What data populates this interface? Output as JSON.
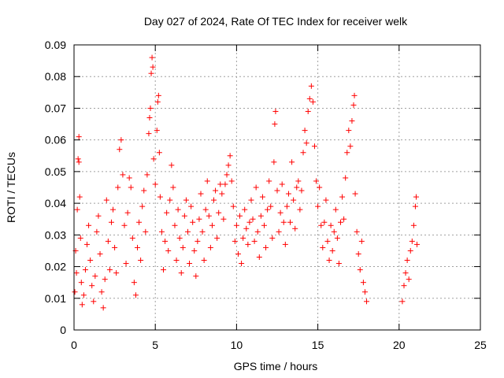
{
  "chart_data": {
    "type": "scatter",
    "title": "Day 027 of 2024, Rate Of TEC Index for receiver welk",
    "xlabel": "GPS time / hours",
    "ylabel": "ROTI / TECUs",
    "xlim": [
      0,
      25
    ],
    "ylim": [
      0,
      0.09
    ],
    "xticks": [
      0,
      5,
      10,
      15,
      20,
      25
    ],
    "yticks": [
      0,
      0.01,
      0.02,
      0.03,
      0.04,
      0.05,
      0.06,
      0.07,
      0.08,
      0.09
    ],
    "xtick_labels": [
      "0",
      "5",
      "10",
      "15",
      "20",
      "25"
    ],
    "ytick_labels": [
      "0",
      "0.01",
      "0.02",
      "0.03",
      "0.04",
      "0.05",
      "0.06",
      "0.07",
      "0.08",
      "0.09"
    ],
    "grid": true,
    "marker": "+",
    "color": "#ff0000",
    "series": [
      {
        "points": [
          [
            0.05,
            0.012
          ],
          [
            0.1,
            0.025
          ],
          [
            0.15,
            0.018
          ],
          [
            0.2,
            0.038
          ],
          [
            0.25,
            0.054
          ],
          [
            0.3,
            0.061
          ],
          [
            0.3,
            0.053
          ],
          [
            0.35,
            0.042
          ],
          [
            0.4,
            0.029
          ],
          [
            0.45,
            0.015
          ],
          [
            0.5,
            0.008
          ],
          [
            0.6,
            0.011
          ],
          [
            0.7,
            0.019
          ],
          [
            0.8,
            0.027
          ],
          [
            0.9,
            0.033
          ],
          [
            1.0,
            0.022
          ],
          [
            1.1,
            0.014
          ],
          [
            1.2,
            0.009
          ],
          [
            1.3,
            0.017
          ],
          [
            1.4,
            0.031
          ],
          [
            1.5,
            0.036
          ],
          [
            1.6,
            0.024
          ],
          [
            1.7,
            0.012
          ],
          [
            1.8,
            0.007
          ],
          [
            1.9,
            0.016
          ],
          [
            2.0,
            0.041
          ],
          [
            2.1,
            0.028
          ],
          [
            2.2,
            0.019
          ],
          [
            2.3,
            0.034
          ],
          [
            2.4,
            0.038
          ],
          [
            2.5,
            0.026
          ],
          [
            2.6,
            0.018
          ],
          [
            2.7,
            0.045
          ],
          [
            2.8,
            0.057
          ],
          [
            2.9,
            0.06
          ],
          [
            3.0,
            0.049
          ],
          [
            3.1,
            0.033
          ],
          [
            3.2,
            0.021
          ],
          [
            3.3,
            0.037
          ],
          [
            3.4,
            0.048
          ],
          [
            3.5,
            0.045
          ],
          [
            3.6,
            0.029
          ],
          [
            3.7,
            0.015
          ],
          [
            3.8,
            0.011
          ],
          [
            3.9,
            0.026
          ],
          [
            4.0,
            0.034
          ],
          [
            4.1,
            0.022
          ],
          [
            4.2,
            0.039
          ],
          [
            4.3,
            0.044
          ],
          [
            4.4,
            0.031
          ],
          [
            4.5,
            0.049
          ],
          [
            4.6,
            0.062
          ],
          [
            4.65,
            0.067
          ],
          [
            4.7,
            0.07
          ],
          [
            4.75,
            0.081
          ],
          [
            4.8,
            0.086
          ],
          [
            4.85,
            0.083
          ],
          [
            4.9,
            0.054
          ],
          [
            5.0,
            0.046
          ],
          [
            5.1,
            0.063
          ],
          [
            5.15,
            0.072
          ],
          [
            5.2,
            0.074
          ],
          [
            5.25,
            0.056
          ],
          [
            5.3,
            0.042
          ],
          [
            5.4,
            0.031
          ],
          [
            5.5,
            0.019
          ],
          [
            5.6,
            0.028
          ],
          [
            5.7,
            0.037
          ],
          [
            5.8,
            0.025
          ],
          [
            5.9,
            0.041
          ],
          [
            6.0,
            0.052
          ],
          [
            6.1,
            0.045
          ],
          [
            6.2,
            0.033
          ],
          [
            6.3,
            0.022
          ],
          [
            6.4,
            0.038
          ],
          [
            6.5,
            0.029
          ],
          [
            6.6,
            0.018
          ],
          [
            6.7,
            0.026
          ],
          [
            6.8,
            0.036
          ],
          [
            6.9,
            0.041
          ],
          [
            7.0,
            0.031
          ],
          [
            7.1,
            0.021
          ],
          [
            7.2,
            0.039
          ],
          [
            7.3,
            0.034
          ],
          [
            7.4,
            0.025
          ],
          [
            7.5,
            0.017
          ],
          [
            7.6,
            0.028
          ],
          [
            7.7,
            0.035
          ],
          [
            7.8,
            0.043
          ],
          [
            7.9,
            0.031
          ],
          [
            8.0,
            0.022
          ],
          [
            8.1,
            0.038
          ],
          [
            8.2,
            0.047
          ],
          [
            8.3,
            0.036
          ],
          [
            8.4,
            0.026
          ],
          [
            8.5,
            0.033
          ],
          [
            8.6,
            0.041
          ],
          [
            8.7,
            0.044
          ],
          [
            8.8,
            0.029
          ],
          [
            8.9,
            0.037
          ],
          [
            9.0,
            0.046
          ],
          [
            9.1,
            0.043
          ],
          [
            9.2,
            0.035
          ],
          [
            9.3,
            0.046
          ],
          [
            9.4,
            0.049
          ],
          [
            9.5,
            0.052
          ],
          [
            9.6,
            0.055
          ],
          [
            9.7,
            0.047
          ],
          [
            9.8,
            0.039
          ],
          [
            9.9,
            0.028
          ],
          [
            10.0,
            0.033
          ],
          [
            10.1,
            0.024
          ],
          [
            10.2,
            0.036
          ],
          [
            10.3,
            0.021
          ],
          [
            10.4,
            0.029
          ],
          [
            10.5,
            0.038
          ],
          [
            10.6,
            0.032
          ],
          [
            10.7,
            0.027
          ],
          [
            10.8,
            0.034
          ],
          [
            10.9,
            0.041
          ],
          [
            11.0,
            0.035
          ],
          [
            11.1,
            0.028
          ],
          [
            11.2,
            0.045
          ],
          [
            11.3,
            0.031
          ],
          [
            11.4,
            0.023
          ],
          [
            11.5,
            0.036
          ],
          [
            11.6,
            0.042
          ],
          [
            11.7,
            0.033
          ],
          [
            11.8,
            0.026
          ],
          [
            11.9,
            0.038
          ],
          [
            12.0,
            0.047
          ],
          [
            12.1,
            0.039
          ],
          [
            12.2,
            0.029
          ],
          [
            12.3,
            0.053
          ],
          [
            12.35,
            0.065
          ],
          [
            12.4,
            0.069
          ],
          [
            12.5,
            0.044
          ],
          [
            12.6,
            0.031
          ],
          [
            12.7,
            0.037
          ],
          [
            12.8,
            0.046
          ],
          [
            12.9,
            0.034
          ],
          [
            13.0,
            0.027
          ],
          [
            13.1,
            0.039
          ],
          [
            13.2,
            0.043
          ],
          [
            13.3,
            0.034
          ],
          [
            13.4,
            0.053
          ],
          [
            13.5,
            0.041
          ],
          [
            13.6,
            0.032
          ],
          [
            13.7,
            0.045
          ],
          [
            13.8,
            0.047
          ],
          [
            13.9,
            0.038
          ],
          [
            14.0,
            0.044
          ],
          [
            14.1,
            0.056
          ],
          [
            14.2,
            0.063
          ],
          [
            14.3,
            0.059
          ],
          [
            14.4,
            0.069
          ],
          [
            14.5,
            0.073
          ],
          [
            14.6,
            0.077
          ],
          [
            14.7,
            0.072
          ],
          [
            14.8,
            0.058
          ],
          [
            14.9,
            0.047
          ],
          [
            15.0,
            0.039
          ],
          [
            15.1,
            0.045
          ],
          [
            15.2,
            0.033
          ],
          [
            15.3,
            0.026
          ],
          [
            15.4,
            0.034
          ],
          [
            15.5,
            0.041
          ],
          [
            15.6,
            0.028
          ],
          [
            15.7,
            0.022
          ],
          [
            15.8,
            0.033
          ],
          [
            15.9,
            0.025
          ],
          [
            16.0,
            0.031
          ],
          [
            16.1,
            0.038
          ],
          [
            16.2,
            0.029
          ],
          [
            16.3,
            0.021
          ],
          [
            16.4,
            0.034
          ],
          [
            16.5,
            0.042
          ],
          [
            16.6,
            0.035
          ],
          [
            16.7,
            0.048
          ],
          [
            16.8,
            0.056
          ],
          [
            16.9,
            0.063
          ],
          [
            17.0,
            0.058
          ],
          [
            17.1,
            0.066
          ],
          [
            17.2,
            0.071
          ],
          [
            17.25,
            0.074
          ],
          [
            17.3,
            0.043
          ],
          [
            17.4,
            0.031
          ],
          [
            17.5,
            0.024
          ],
          [
            17.6,
            0.019
          ],
          [
            17.7,
            0.028
          ],
          [
            17.8,
            0.015
          ],
          [
            17.9,
            0.012
          ],
          [
            18.0,
            0.009
          ],
          [
            20.2,
            0.009
          ],
          [
            20.3,
            0.014
          ],
          [
            20.4,
            0.018
          ],
          [
            20.5,
            0.022
          ],
          [
            20.6,
            0.016
          ],
          [
            20.7,
            0.025
          ],
          [
            20.8,
            0.028
          ],
          [
            20.9,
            0.033
          ],
          [
            21.0,
            0.039
          ],
          [
            21.05,
            0.042
          ],
          [
            21.1,
            0.027
          ]
        ]
      }
    ]
  }
}
